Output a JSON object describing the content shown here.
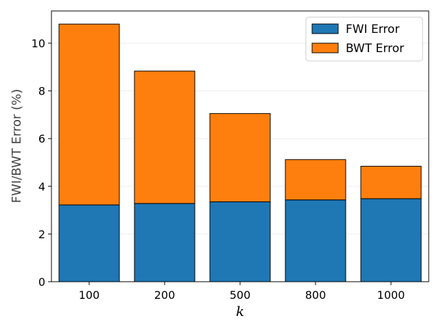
{
  "chart_data": {
    "type": "bar",
    "stacked": true,
    "categories": [
      "100",
      "200",
      "500",
      "800",
      "1000"
    ],
    "series": [
      {
        "name": "FWI Error",
        "color": "#1f77b4",
        "values": [
          3.22,
          3.28,
          3.35,
          3.43,
          3.48
        ]
      },
      {
        "name": "BWT Error",
        "color": "#ff7f0e",
        "values": [
          7.58,
          5.55,
          3.7,
          1.69,
          1.36
        ]
      }
    ],
    "xlabel": "k",
    "ylabel": "FWI/BWT Error (%)",
    "ylim": [
      0,
      11.35
    ],
    "yticks": [
      "0",
      "2",
      "4",
      "6",
      "8",
      "10"
    ],
    "grid": "horizontal-faint",
    "legend_position": "top-right"
  }
}
